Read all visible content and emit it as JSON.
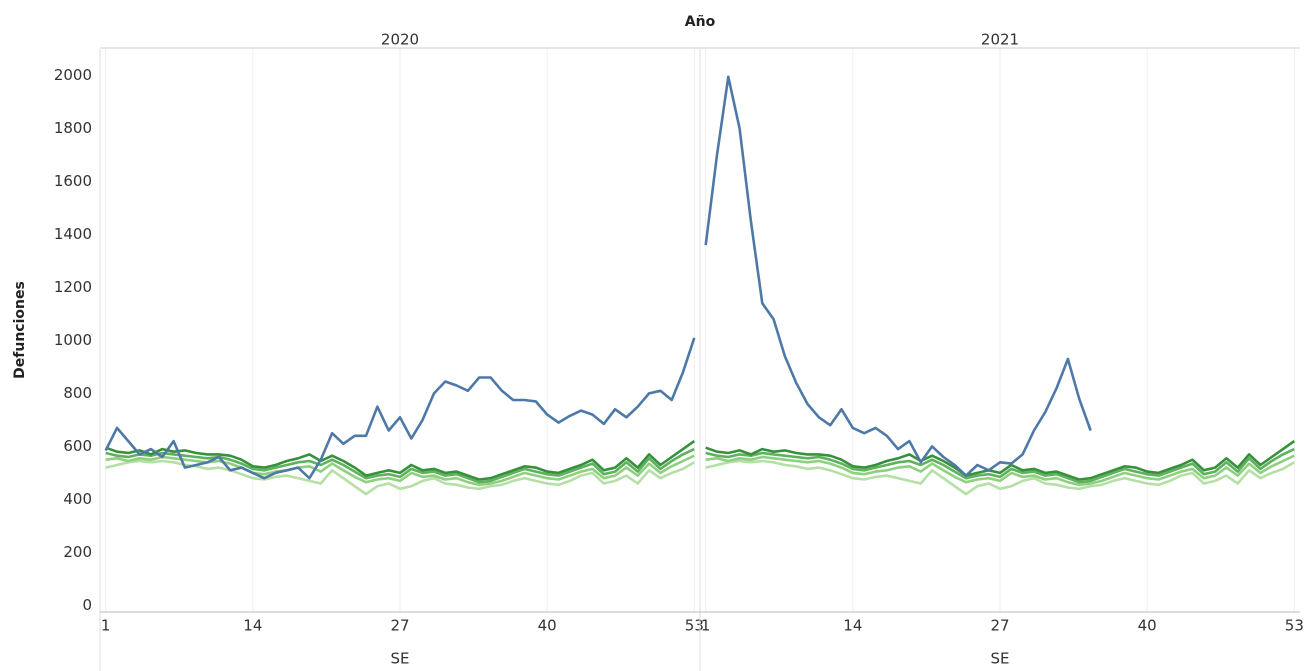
{
  "chart_data": {
    "type": "line",
    "title": "Año",
    "xlabel": "SE",
    "ylabel": "Defunciones",
    "ylim": [
      -25,
      2100
    ],
    "yticks": [
      0,
      200,
      400,
      600,
      800,
      1000,
      1200,
      1400,
      1600,
      1800,
      2000
    ],
    "xlim": [
      0.5,
      53.5
    ],
    "xticks": [
      1,
      14,
      27,
      40,
      53
    ],
    "grid": "x",
    "panels": [
      {
        "title": "2020",
        "x": [
          1,
          2,
          3,
          4,
          5,
          6,
          7,
          8,
          9,
          10,
          11,
          12,
          13,
          14,
          15,
          16,
          17,
          18,
          19,
          20,
          21,
          22,
          23,
          24,
          25,
          26,
          27,
          28,
          29,
          30,
          31,
          32,
          33,
          34,
          35,
          36,
          37,
          38,
          39,
          40,
          41,
          42,
          43,
          44,
          45,
          46,
          47,
          48,
          49,
          50,
          51,
          52,
          53
        ],
        "series": [
          {
            "color": "#b5e0a5",
            "values": [
              520,
              530,
              540,
              545,
              540,
              545,
              540,
              530,
              525,
              515,
              520,
              510,
              495,
              480,
              475,
              485,
              490,
              480,
              470,
              460,
              510,
              480,
              450,
              420,
              450,
              460,
              440,
              450,
              470,
              480,
              460,
              455,
              445,
              440,
              450,
              455,
              470,
              480,
              470,
              460,
              455,
              470,
              490,
              500,
              460,
              470,
              490,
              460,
              510,
              480,
              500,
              515,
              540
            ]
          },
          {
            "color": "#8fcf80",
            "values": [
              550,
              555,
              545,
              555,
              550,
              560,
              555,
              550,
              545,
              540,
              545,
              535,
              520,
              500,
              495,
              505,
              510,
              520,
              525,
              505,
              535,
              510,
              485,
              465,
              475,
              480,
              470,
              500,
              485,
              490,
              475,
              480,
              465,
              455,
              460,
              470,
              485,
              500,
              490,
              480,
              475,
              490,
              505,
              515,
              480,
              490,
              520,
              490,
              535,
              500,
              525,
              545,
              565
            ]
          },
          {
            "color": "#5fb05f",
            "values": [
              575,
              565,
              560,
              570,
              565,
              575,
              570,
              565,
              560,
              555,
              560,
              550,
              535,
              515,
              510,
              520,
              530,
              540,
              545,
              530,
              550,
              530,
              505,
              480,
              490,
              495,
              485,
              515,
              500,
              505,
              490,
              495,
              480,
              465,
              470,
              485,
              500,
              515,
              505,
              495,
              490,
              505,
              520,
              535,
              495,
              505,
              540,
              505,
              555,
              515,
              545,
              570,
              590
            ]
          },
          {
            "color": "#35923a",
            "values": [
              595,
              580,
              575,
              585,
              570,
              590,
              580,
              585,
              575,
              570,
              570,
              565,
              550,
              525,
              520,
              530,
              545,
              555,
              570,
              545,
              565,
              545,
              520,
              490,
              500,
              510,
              500,
              530,
              510,
              515,
              500,
              505,
              490,
              475,
              480,
              495,
              510,
              525,
              520,
              505,
              500,
              515,
              530,
              550,
              510,
              520,
              555,
              520,
              570,
              530,
              560,
              590,
              620
            ]
          },
          {
            "color": "#4e79a7",
            "values": [
              585,
              670,
              620,
              570,
              590,
              560,
              620,
              520,
              530,
              540,
              560,
              510,
              520,
              500,
              480,
              500,
              510,
              520,
              480,
              550,
              650,
              610,
              640,
              640,
              750,
              660,
              710,
              630,
              700,
              800,
              845,
              830,
              810,
              860,
              860,
              810,
              775,
              775,
              770,
              720,
              690,
              715,
              735,
              720,
              685,
              740,
              710,
              750,
              800,
              810,
              775,
              880,
              1010
            ]
          }
        ]
      },
      {
        "title": "2021",
        "x": [
          1,
          2,
          3,
          4,
          5,
          6,
          7,
          8,
          9,
          10,
          11,
          12,
          13,
          14,
          15,
          16,
          17,
          18,
          19,
          20,
          21,
          22,
          23,
          24,
          25,
          26,
          27,
          28,
          29,
          30,
          31,
          32,
          33,
          34,
          35,
          36,
          37,
          38,
          39,
          40,
          41,
          42,
          43,
          44,
          45,
          46,
          47,
          48,
          49,
          50,
          51,
          52,
          53
        ],
        "series": [
          {
            "color": "#b5e0a5",
            "values": [
              520,
              530,
              540,
              545,
              540,
              545,
              540,
              530,
              525,
              515,
              520,
              510,
              495,
              480,
              475,
              485,
              490,
              480,
              470,
              460,
              510,
              480,
              450,
              420,
              450,
              460,
              440,
              450,
              470,
              480,
              460,
              455,
              445,
              440,
              450,
              455,
              470,
              480,
              470,
              460,
              455,
              470,
              490,
              500,
              460,
              470,
              490,
              460,
              510,
              480,
              500,
              515,
              540
            ]
          },
          {
            "color": "#8fcf80",
            "values": [
              550,
              555,
              545,
              555,
              550,
              560,
              555,
              550,
              545,
              540,
              545,
              535,
              520,
              500,
              495,
              505,
              510,
              520,
              525,
              505,
              535,
              510,
              485,
              465,
              475,
              480,
              470,
              500,
              485,
              490,
              475,
              480,
              465,
              455,
              460,
              470,
              485,
              500,
              490,
              480,
              475,
              490,
              505,
              515,
              480,
              490,
              520,
              490,
              535,
              500,
              525,
              545,
              565
            ]
          },
          {
            "color": "#5fb05f",
            "values": [
              575,
              565,
              560,
              570,
              565,
              575,
              570,
              565,
              560,
              555,
              560,
              550,
              535,
              515,
              510,
              520,
              530,
              540,
              545,
              530,
              550,
              530,
              505,
              480,
              490,
              495,
              485,
              515,
              500,
              505,
              490,
              495,
              480,
              465,
              470,
              485,
              500,
              515,
              505,
              495,
              490,
              505,
              520,
              535,
              495,
              505,
              540,
              505,
              555,
              515,
              545,
              570,
              590
            ]
          },
          {
            "color": "#35923a",
            "values": [
              595,
              580,
              575,
              585,
              570,
              590,
              580,
              585,
              575,
              570,
              570,
              565,
              550,
              525,
              520,
              530,
              545,
              555,
              570,
              545,
              565,
              545,
              520,
              490,
              500,
              510,
              500,
              530,
              510,
              515,
              500,
              505,
              490,
              475,
              480,
              495,
              510,
              525,
              520,
              505,
              500,
              515,
              530,
              550,
              510,
              520,
              555,
              520,
              570,
              530,
              560,
              590,
              620
            ]
          },
          {
            "color": "#4e79a7",
            "values": [
              1360,
              1700,
              1995,
              1800,
              1450,
              1140,
              1080,
              940,
              840,
              760,
              710,
              680,
              740,
              670,
              650,
              670,
              640,
              590,
              620,
              540,
              600,
              560,
              530,
              490,
              530,
              510,
              540,
              535,
              570,
              660,
              730,
              820,
              930,
              780,
              660,
              null,
              null,
              null,
              null,
              null,
              null,
              null,
              null,
              null,
              null,
              null,
              null,
              null,
              null,
              null,
              null,
              null,
              null
            ]
          }
        ]
      }
    ]
  }
}
